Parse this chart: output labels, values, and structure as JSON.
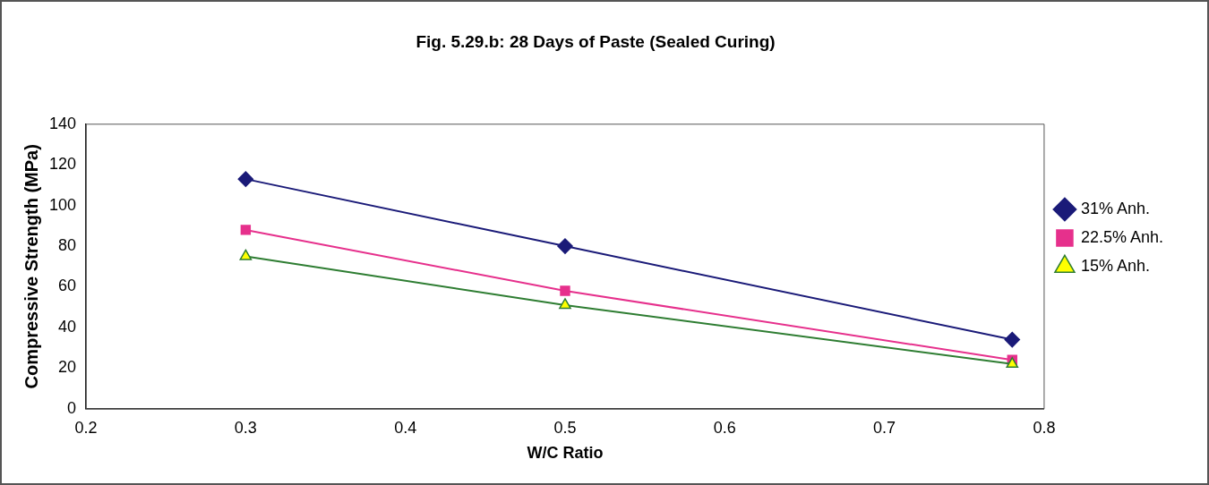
{
  "chart_data": {
    "type": "line",
    "title": "Fig. 5.29.b: 28 Days of Paste (Sealed Curing)",
    "xlabel": "W/C Ratio",
    "ylabel": "Compressive Strength (MPa)",
    "x": [
      0.3,
      0.5,
      0.78
    ],
    "series": [
      {
        "name": "31% Anh.",
        "color": "#1a1a78",
        "marker": "diamond",
        "values": [
          113,
          80,
          34
        ]
      },
      {
        "name": "22.5% Anh.",
        "color": "#e6308c",
        "marker": "square",
        "values": [
          88,
          58,
          24
        ]
      },
      {
        "name": "15% Anh.",
        "color": "#2e7d32",
        "marker": "triangle",
        "values": [
          75,
          51,
          22
        ]
      }
    ],
    "xlim": [
      0.2,
      0.8
    ],
    "xticks": [
      0.2,
      0.3,
      0.4,
      0.5,
      0.6,
      0.7,
      0.8
    ],
    "ylim": [
      0,
      140
    ],
    "yticks": [
      0,
      20,
      40,
      60,
      80,
      100,
      120,
      140
    ],
    "grid": false,
    "legend": "right",
    "line_style": "solid"
  }
}
